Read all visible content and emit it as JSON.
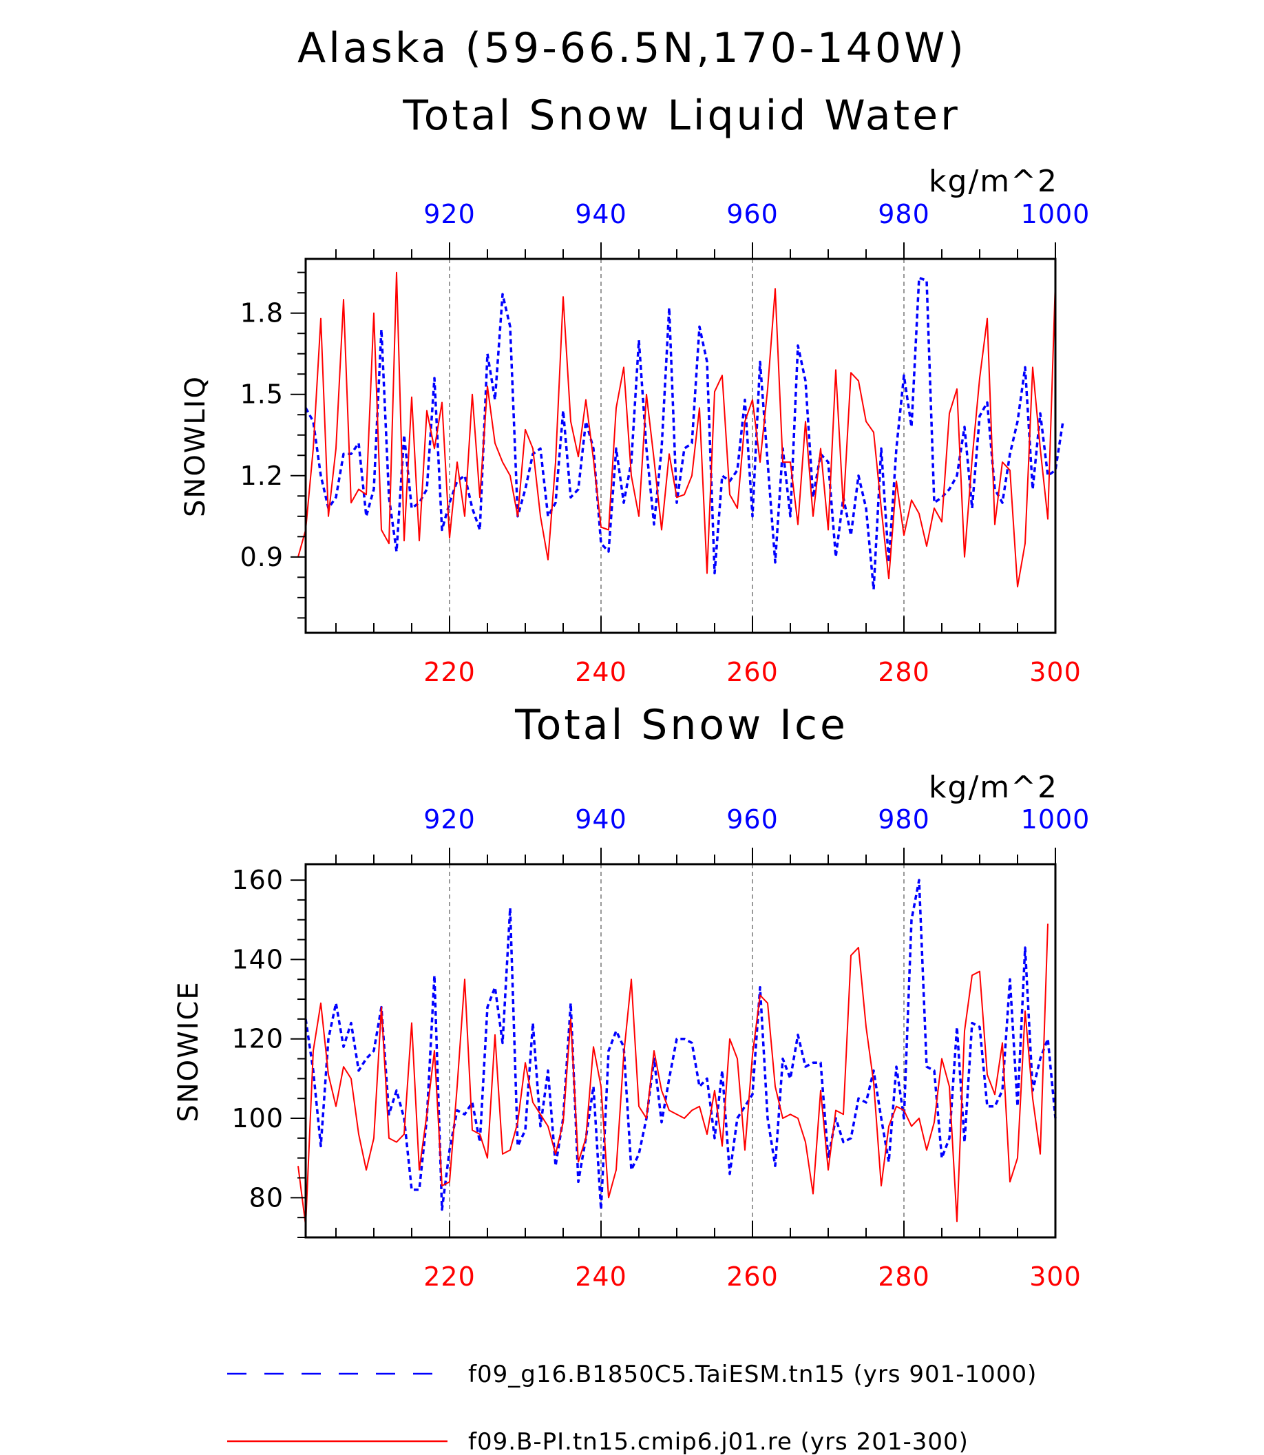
{
  "header": {
    "title_line1": "Alaska (59-66.5N,170-140W)",
    "title_line2": "Total Snow Liquid Water"
  },
  "colors": {
    "series_a": "#0000ff",
    "series_b": "#ff0000",
    "axis": "#000000"
  },
  "legend": {
    "items": [
      {
        "label": "f09_g16.B1850C5.TaiESM.tn15 (yrs 901-1000)",
        "color": "#0000ff",
        "style": "dashed"
      },
      {
        "label": "f09.B-PI.tn15.cmip6.j01.re (yrs 201-300)",
        "color": "#ff0000",
        "style": "solid"
      }
    ]
  },
  "chart_data": [
    {
      "type": "line",
      "title": "Total Snow Liquid Water",
      "units": "kg/m^2",
      "ylabel": "SNOWLIQ",
      "ylim": [
        0.62,
        2.0
      ],
      "yticks": [
        "0.9",
        "1.2",
        "1.5",
        "1.8"
      ],
      "grid": "vertical dashed at labeled x ticks",
      "top_axis": {
        "range": [
          901,
          1000
        ],
        "ticks": [
          "920",
          "940",
          "960",
          "980",
          "1000"
        ],
        "color": "#0000ff"
      },
      "bottom_axis": {
        "range": [
          201,
          300
        ],
        "ticks": [
          "220",
          "240",
          "260",
          "280",
          "300"
        ],
        "color": "#ff0000"
      },
      "series": [
        {
          "name": "f09_g16.B1850C5.TaiESM.tn15 (yrs 901-1000)",
          "axis": "top",
          "style": "dashed",
          "color": "#0000ff",
          "x_start": 901,
          "values": [
            1.45,
            1.4,
            1.2,
            1.08,
            1.12,
            1.28,
            1.28,
            1.32,
            1.05,
            1.15,
            1.74,
            1.12,
            0.92,
            1.35,
            1.08,
            1.1,
            1.15,
            1.56,
            1.0,
            1.1,
            1.18,
            1.2,
            1.08,
            1.0,
            1.65,
            1.48,
            1.87,
            1.75,
            1.05,
            1.15,
            1.28,
            1.3,
            1.05,
            1.1,
            1.44,
            1.12,
            1.15,
            1.4,
            1.3,
            0.95,
            0.92,
            1.3,
            1.1,
            1.25,
            1.7,
            1.3,
            1.02,
            1.3,
            1.82,
            1.1,
            1.3,
            1.32,
            1.75,
            1.62,
            0.84,
            1.2,
            1.18,
            1.22,
            1.48,
            1.05,
            1.62,
            1.25,
            0.88,
            1.3,
            1.05,
            1.68,
            1.55,
            1.12,
            1.28,
            1.25,
            0.9,
            1.12,
            0.98,
            1.2,
            1.08,
            0.78,
            1.3,
            0.88,
            1.3,
            1.57,
            1.38,
            1.93,
            1.92,
            1.1,
            1.12,
            1.15,
            1.2,
            1.38,
            1.08,
            1.42,
            1.47,
            1.15,
            1.1,
            1.28,
            1.4,
            1.6,
            1.15,
            1.43,
            1.2,
            1.22,
            1.4
          ]
        },
        {
          "name": "f09.B-PI.tn15.cmip6.j01.re (yrs 201-300)",
          "axis": "bottom",
          "style": "solid",
          "color": "#ff0000",
          "x_start": 200,
          "values": [
            0.9,
            1.0,
            1.3,
            1.78,
            1.05,
            1.3,
            1.85,
            1.1,
            1.15,
            1.13,
            1.8,
            1.0,
            0.95,
            1.95,
            0.96,
            1.49,
            0.96,
            1.44,
            1.3,
            1.47,
            0.97,
            1.25,
            1.05,
            1.5,
            1.12,
            1.53,
            1.32,
            1.25,
            1.2,
            1.05,
            1.37,
            1.3,
            1.05,
            0.89,
            1.25,
            1.86,
            1.4,
            1.27,
            1.48,
            1.26,
            1.01,
            1.0,
            1.45,
            1.6,
            1.2,
            1.05,
            1.5,
            1.26,
            1.0,
            1.28,
            1.12,
            1.13,
            1.2,
            1.45,
            0.84,
            1.51,
            1.57,
            1.13,
            1.08,
            1.4,
            1.48,
            1.25,
            1.52,
            1.89,
            1.25,
            1.25,
            1.02,
            1.4,
            1.05,
            1.3,
            1.0,
            1.59,
            1.08,
            1.58,
            1.55,
            1.4,
            1.36,
            1.08,
            0.82,
            1.18,
            0.98,
            1.11,
            1.06,
            0.94,
            1.08,
            1.03,
            1.43,
            1.52,
            0.9,
            1.26,
            1.56,
            1.78,
            1.02,
            1.25,
            1.22,
            0.79,
            0.95,
            1.6,
            1.3,
            1.04,
            1.92
          ]
        }
      ]
    },
    {
      "type": "line",
      "title": "Total Snow Ice",
      "units": "kg/m^2",
      "ylabel": "SNOWICE",
      "ylim": [
        70,
        164
      ],
      "yticks": [
        "80",
        "100",
        "120",
        "140",
        "160"
      ],
      "grid": "vertical dashed at labeled x ticks",
      "top_axis": {
        "range": [
          901,
          1000
        ],
        "ticks": [
          "920",
          "940",
          "960",
          "980",
          "1000"
        ],
        "color": "#0000ff"
      },
      "bottom_axis": {
        "range": [
          201,
          300
        ],
        "ticks": [
          "220",
          "240",
          "260",
          "280",
          "300"
        ],
        "color": "#ff0000"
      },
      "series": [
        {
          "name": "f09_g16.B1850C5.TaiESM.tn15 (yrs 901-1000)",
          "axis": "top",
          "style": "dashed",
          "color": "#0000ff",
          "x_start": 901,
          "values": [
            125,
            112,
            93,
            120,
            129,
            118,
            124,
            112,
            115,
            117,
            128,
            101,
            107,
            100,
            82,
            82,
            100,
            136,
            77,
            92,
            102,
            101,
            104,
            94,
            128,
            133,
            119,
            153,
            93,
            97,
            124,
            98,
            112,
            88,
            100,
            129,
            84,
            95,
            108,
            77,
            117,
            122,
            118,
            87,
            91,
            100,
            115,
            99,
            110,
            120,
            120,
            119,
            108,
            110,
            95,
            112,
            86,
            100,
            103,
            106,
            133,
            100,
            88,
            115,
            110,
            121,
            113,
            114,
            114,
            90,
            100,
            94,
            95,
            105,
            104,
            112,
            100,
            89,
            113,
            100,
            150,
            160,
            113,
            112,
            90,
            95,
            123,
            94,
            124,
            123,
            103,
            103,
            107,
            135,
            103,
            143,
            107,
            115,
            120,
            100
          ]
        },
        {
          "name": "f09.B-PI.tn15.cmip6.j01.re (yrs 201-300)",
          "axis": "bottom",
          "style": "solid",
          "color": "#ff0000",
          "x_start": 200,
          "values": [
            88,
            73,
            117,
            129,
            111,
            103,
            113,
            110,
            96,
            87,
            95,
            128,
            95,
            94,
            96,
            124,
            87,
            101,
            117,
            83,
            84,
            108,
            135,
            97,
            96,
            90,
            121,
            91,
            92,
            99,
            114,
            104,
            101,
            98,
            91,
            99,
            125,
            89,
            95,
            118,
            108,
            80,
            87,
            116,
            135,
            103,
            100,
            117,
            107,
            102,
            101,
            100,
            102,
            103,
            96,
            107,
            93,
            120,
            115,
            92,
            116,
            131,
            129,
            108,
            100,
            101,
            100,
            94,
            81,
            107,
            87,
            102,
            101,
            141,
            143,
            123,
            109,
            83,
            98,
            103,
            102,
            98,
            100,
            92,
            99,
            115,
            108,
            74,
            122,
            136,
            137,
            111,
            106,
            119,
            84,
            90,
            127,
            105,
            91,
            149
          ]
        }
      ]
    }
  ]
}
